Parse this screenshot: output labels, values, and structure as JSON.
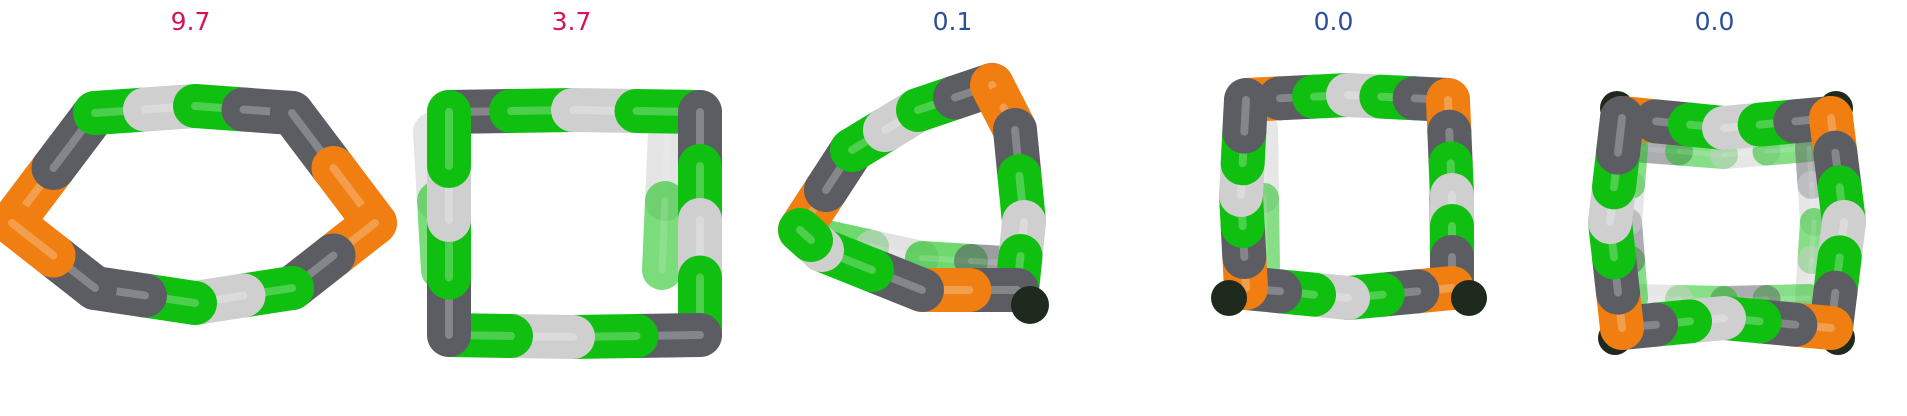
{
  "panels": [
    {
      "id": "p1",
      "energy": "9.7",
      "energy_color": "#d4145a"
    },
    {
      "id": "p2",
      "energy": "3.7",
      "energy_color": "#d4145a"
    },
    {
      "id": "p3",
      "energy": "0.1",
      "energy_color": "#2b4f9a"
    },
    {
      "id": "p4",
      "energy": "0.0",
      "energy_color": "#2b4f9a"
    },
    {
      "id": "p5",
      "energy": "0.0",
      "energy_color": "#2b4f9a"
    }
  ],
  "colors": {
    "gray": "#5b5d63",
    "green": "#10c010",
    "white": "#cfcfcf",
    "orange": "#f07e10",
    "dark": "#1e2a1e"
  }
}
